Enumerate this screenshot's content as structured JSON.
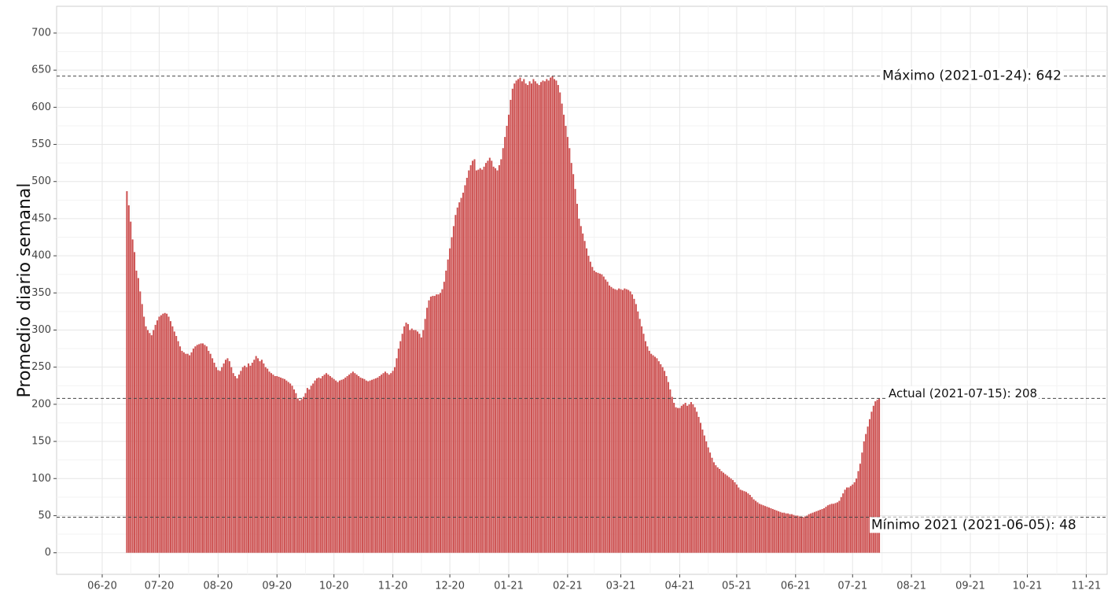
{
  "chart_data": {
    "type": "bar",
    "y_label": "Promedio diario semanal",
    "color": "#cd5252",
    "grid": true,
    "ylim": [
      -29,
      736
    ],
    "yticks": [
      0,
      50,
      100,
      150,
      200,
      250,
      300,
      350,
      400,
      450,
      500,
      550,
      600,
      650,
      700
    ],
    "xlim": [
      "2020-05-08",
      "2021-11-12"
    ],
    "xticks": [
      {
        "value": "2020-06-01",
        "label": "06-20"
      },
      {
        "value": "2020-07-01",
        "label": "07-20"
      },
      {
        "value": "2020-08-01",
        "label": "08-20"
      },
      {
        "value": "2020-09-01",
        "label": "09-20"
      },
      {
        "value": "2020-10-01",
        "label": "10-20"
      },
      {
        "value": "2020-11-01",
        "label": "11-20"
      },
      {
        "value": "2020-12-01",
        "label": "12-20"
      },
      {
        "value": "2021-01-01",
        "label": "01-21"
      },
      {
        "value": "2021-02-01",
        "label": "02-21"
      },
      {
        "value": "2021-03-01",
        "label": "03-21"
      },
      {
        "value": "2021-04-01",
        "label": "04-21"
      },
      {
        "value": "2021-05-01",
        "label": "05-21"
      },
      {
        "value": "2021-06-01",
        "label": "06-21"
      },
      {
        "value": "2021-07-01",
        "label": "07-21"
      },
      {
        "value": "2021-08-01",
        "label": "08-21"
      },
      {
        "value": "2021-09-01",
        "label": "09-21"
      },
      {
        "value": "2021-10-01",
        "label": "10-21"
      },
      {
        "value": "2021-11-01",
        "label": "11-21"
      }
    ],
    "annotations": [
      {
        "text": "Máximo (2021-01-24): 642",
        "value": 642
      },
      {
        "text": "Actual (2021-07-15): 208",
        "value": 208
      },
      {
        "text": "Mínimo 2021 (2021-06-05): 48",
        "value": 48
      }
    ],
    "x": [
      "2020-06-14",
      "2020-06-15",
      "2020-06-16",
      "2020-06-17",
      "2020-06-18",
      "2020-06-19",
      "2020-06-20",
      "2020-06-21",
      "2020-06-22",
      "2020-06-23",
      "2020-06-24",
      "2020-06-25",
      "2020-06-26",
      "2020-06-27",
      "2020-06-28",
      "2020-06-29",
      "2020-06-30",
      "2020-07-01",
      "2020-07-02",
      "2020-07-03",
      "2020-07-04",
      "2020-07-05",
      "2020-07-06",
      "2020-07-07",
      "2020-07-08",
      "2020-07-09",
      "2020-07-10",
      "2020-07-11",
      "2020-07-12",
      "2020-07-13",
      "2020-07-14",
      "2020-07-15",
      "2020-07-16",
      "2020-07-17",
      "2020-07-18",
      "2020-07-19",
      "2020-07-20",
      "2020-07-21",
      "2020-07-22",
      "2020-07-23",
      "2020-07-24",
      "2020-07-25",
      "2020-07-26",
      "2020-07-27",
      "2020-07-28",
      "2020-07-29",
      "2020-07-30",
      "2020-07-31",
      "2020-08-01",
      "2020-08-02",
      "2020-08-03",
      "2020-08-04",
      "2020-08-05",
      "2020-08-06",
      "2020-08-07",
      "2020-08-08",
      "2020-08-09",
      "2020-08-10",
      "2020-08-11",
      "2020-08-12",
      "2020-08-13",
      "2020-08-14",
      "2020-08-15",
      "2020-08-16",
      "2020-08-17",
      "2020-08-18",
      "2020-08-19",
      "2020-08-20",
      "2020-08-21",
      "2020-08-22",
      "2020-08-23",
      "2020-08-24",
      "2020-08-25",
      "2020-08-26",
      "2020-08-27",
      "2020-08-28",
      "2020-08-29",
      "2020-08-30",
      "2020-08-31",
      "2020-09-01",
      "2020-09-02",
      "2020-09-03",
      "2020-09-04",
      "2020-09-05",
      "2020-09-06",
      "2020-09-07",
      "2020-09-08",
      "2020-09-09",
      "2020-09-10",
      "2020-09-11",
      "2020-09-12",
      "2020-09-13",
      "2020-09-14",
      "2020-09-15",
      "2020-09-16",
      "2020-09-17",
      "2020-09-18",
      "2020-09-19",
      "2020-09-20",
      "2020-09-21",
      "2020-09-22",
      "2020-09-23",
      "2020-09-24",
      "2020-09-25",
      "2020-09-26",
      "2020-09-27",
      "2020-09-28",
      "2020-09-29",
      "2020-09-30",
      "2020-10-01",
      "2020-10-02",
      "2020-10-03",
      "2020-10-04",
      "2020-10-05",
      "2020-10-06",
      "2020-10-07",
      "2020-10-08",
      "2020-10-09",
      "2020-10-10",
      "2020-10-11",
      "2020-10-12",
      "2020-10-13",
      "2020-10-14",
      "2020-10-15",
      "2020-10-16",
      "2020-10-17",
      "2020-10-18",
      "2020-10-19",
      "2020-10-20",
      "2020-10-21",
      "2020-10-22",
      "2020-10-23",
      "2020-10-24",
      "2020-10-25",
      "2020-10-26",
      "2020-10-27",
      "2020-10-28",
      "2020-10-29",
      "2020-10-30",
      "2020-10-31",
      "2020-11-01",
      "2020-11-02",
      "2020-11-03",
      "2020-11-04",
      "2020-11-05",
      "2020-11-06",
      "2020-11-07",
      "2020-11-08",
      "2020-11-09",
      "2020-11-10",
      "2020-11-11",
      "2020-11-12",
      "2020-11-13",
      "2020-11-14",
      "2020-11-15",
      "2020-11-16",
      "2020-11-17",
      "2020-11-18",
      "2020-11-19",
      "2020-11-20",
      "2020-11-21",
      "2020-11-22",
      "2020-11-23",
      "2020-11-24",
      "2020-11-25",
      "2020-11-26",
      "2020-11-27",
      "2020-11-28",
      "2020-11-29",
      "2020-11-30",
      "2020-12-01",
      "2020-12-02",
      "2020-12-03",
      "2020-12-04",
      "2020-12-05",
      "2020-12-06",
      "2020-12-07",
      "2020-12-08",
      "2020-12-09",
      "2020-12-10",
      "2020-12-11",
      "2020-12-12",
      "2020-12-13",
      "2020-12-14",
      "2020-12-15",
      "2020-12-16",
      "2020-12-17",
      "2020-12-18",
      "2020-12-19",
      "2020-12-20",
      "2020-12-21",
      "2020-12-22",
      "2020-12-23",
      "2020-12-24",
      "2020-12-25",
      "2020-12-26",
      "2020-12-27",
      "2020-12-28",
      "2020-12-29",
      "2020-12-30",
      "2020-12-31",
      "2021-01-01",
      "2021-01-02",
      "2021-01-03",
      "2021-01-04",
      "2021-01-05",
      "2021-01-06",
      "2021-01-07",
      "2021-01-08",
      "2021-01-09",
      "2021-01-10",
      "2021-01-11",
      "2021-01-12",
      "2021-01-13",
      "2021-01-14",
      "2021-01-15",
      "2021-01-16",
      "2021-01-17",
      "2021-01-18",
      "2021-01-19",
      "2021-01-20",
      "2021-01-21",
      "2021-01-22",
      "2021-01-23",
      "2021-01-24",
      "2021-01-25",
      "2021-01-26",
      "2021-01-27",
      "2021-01-28",
      "2021-01-29",
      "2021-01-30",
      "2021-01-31",
      "2021-02-01",
      "2021-02-02",
      "2021-02-03",
      "2021-02-04",
      "2021-02-05",
      "2021-02-06",
      "2021-02-07",
      "2021-02-08",
      "2021-02-09",
      "2021-02-10",
      "2021-02-11",
      "2021-02-12",
      "2021-02-13",
      "2021-02-14",
      "2021-02-15",
      "2021-02-16",
      "2021-02-17",
      "2021-02-18",
      "2021-02-19",
      "2021-02-20",
      "2021-02-21",
      "2021-02-22",
      "2021-02-23",
      "2021-02-24",
      "2021-02-25",
      "2021-02-26",
      "2021-02-27",
      "2021-02-28",
      "2021-03-01",
      "2021-03-02",
      "2021-03-03",
      "2021-03-04",
      "2021-03-05",
      "2021-03-06",
      "2021-03-07",
      "2021-03-08",
      "2021-03-09",
      "2021-03-10",
      "2021-03-11",
      "2021-03-12",
      "2021-03-13",
      "2021-03-14",
      "2021-03-15",
      "2021-03-16",
      "2021-03-17",
      "2021-03-18",
      "2021-03-19",
      "2021-03-20",
      "2021-03-21",
      "2021-03-22",
      "2021-03-23",
      "2021-03-24",
      "2021-03-25",
      "2021-03-26",
      "2021-03-27",
      "2021-03-28",
      "2021-03-29",
      "2021-03-30",
      "2021-03-31",
      "2021-04-01",
      "2021-04-02",
      "2021-04-03",
      "2021-04-04",
      "2021-04-05",
      "2021-04-06",
      "2021-04-07",
      "2021-04-08",
      "2021-04-09",
      "2021-04-10",
      "2021-04-11",
      "2021-04-12",
      "2021-04-13",
      "2021-04-14",
      "2021-04-15",
      "2021-04-16",
      "2021-04-17",
      "2021-04-18",
      "2021-04-19",
      "2021-04-20",
      "2021-04-21",
      "2021-04-22",
      "2021-04-23",
      "2021-04-24",
      "2021-04-25",
      "2021-04-26",
      "2021-04-27",
      "2021-04-28",
      "2021-04-29",
      "2021-04-30",
      "2021-05-01",
      "2021-05-02",
      "2021-05-03",
      "2021-05-04",
      "2021-05-05",
      "2021-05-06",
      "2021-05-07",
      "2021-05-08",
      "2021-05-09",
      "2021-05-10",
      "2021-05-11",
      "2021-05-12",
      "2021-05-13",
      "2021-05-14",
      "2021-05-15",
      "2021-05-16",
      "2021-05-17",
      "2021-05-18",
      "2021-05-19",
      "2021-05-20",
      "2021-05-21",
      "2021-05-22",
      "2021-05-23",
      "2021-05-24",
      "2021-05-25",
      "2021-05-26",
      "2021-05-27",
      "2021-05-28",
      "2021-05-29",
      "2021-05-30",
      "2021-05-31",
      "2021-06-01",
      "2021-06-02",
      "2021-06-03",
      "2021-06-04",
      "2021-06-05",
      "2021-06-06",
      "2021-06-07",
      "2021-06-08",
      "2021-06-09",
      "2021-06-10",
      "2021-06-11",
      "2021-06-12",
      "2021-06-13",
      "2021-06-14",
      "2021-06-15",
      "2021-06-16",
      "2021-06-17",
      "2021-06-18",
      "2021-06-19",
      "2021-06-20",
      "2021-06-21",
      "2021-06-22",
      "2021-06-23",
      "2021-06-24",
      "2021-06-25",
      "2021-06-26",
      "2021-06-27",
      "2021-06-28",
      "2021-06-29",
      "2021-06-30",
      "2021-07-01",
      "2021-07-02",
      "2021-07-03",
      "2021-07-04",
      "2021-07-05",
      "2021-07-06",
      "2021-07-07",
      "2021-07-08",
      "2021-07-09",
      "2021-07-10",
      "2021-07-11",
      "2021-07-12",
      "2021-07-13",
      "2021-07-14",
      "2021-07-15"
    ],
    "values": [
      487,
      468,
      446,
      422,
      405,
      380,
      370,
      352,
      335,
      318,
      305,
      300,
      296,
      293,
      300,
      307,
      313,
      318,
      320,
      322,
      323,
      322,
      318,
      312,
      305,
      298,
      292,
      285,
      278,
      272,
      270,
      268,
      268,
      266,
      270,
      275,
      278,
      280,
      281,
      282,
      282,
      280,
      278,
      272,
      268,
      262,
      256,
      250,
      246,
      245,
      250,
      255,
      260,
      262,
      258,
      250,
      242,
      238,
      235,
      240,
      245,
      250,
      252,
      250,
      255,
      252,
      256,
      260,
      265,
      262,
      258,
      260,
      255,
      250,
      248,
      244,
      242,
      240,
      238,
      238,
      237,
      236,
      235,
      234,
      232,
      230,
      228,
      225,
      220,
      215,
      208,
      205,
      207,
      210,
      215,
      222,
      220,
      225,
      228,
      232,
      235,
      236,
      235,
      238,
      240,
      242,
      240,
      238,
      236,
      234,
      232,
      230,
      232,
      233,
      234,
      236,
      238,
      240,
      242,
      244,
      242,
      240,
      238,
      236,
      235,
      234,
      232,
      231,
      232,
      233,
      234,
      235,
      236,
      238,
      240,
      242,
      244,
      242,
      240,
      242,
      245,
      250,
      262,
      275,
      285,
      295,
      305,
      310,
      308,
      300,
      302,
      300,
      300,
      298,
      295,
      290,
      300,
      315,
      330,
      340,
      345,
      346,
      346,
      348,
      348,
      350,
      355,
      365,
      380,
      395,
      410,
      425,
      440,
      455,
      465,
      472,
      478,
      485,
      495,
      505,
      515,
      522,
      528,
      530,
      515,
      516,
      518,
      516,
      520,
      525,
      528,
      532,
      528,
      520,
      518,
      515,
      522,
      530,
      545,
      560,
      575,
      590,
      610,
      625,
      632,
      636,
      638,
      640,
      635,
      638,
      632,
      630,
      635,
      632,
      638,
      635,
      632,
      630,
      634,
      636,
      635,
      638,
      636,
      640,
      642,
      638,
      636,
      630,
      620,
      605,
      590,
      575,
      560,
      545,
      525,
      510,
      490,
      470,
      450,
      440,
      430,
      420,
      410,
      400,
      392,
      385,
      380,
      378,
      377,
      376,
      375,
      372,
      368,
      365,
      360,
      358,
      356,
      355,
      354,
      356,
      355,
      354,
      356,
      355,
      354,
      352,
      348,
      342,
      335,
      325,
      315,
      305,
      295,
      285,
      278,
      272,
      268,
      266,
      264,
      262,
      258,
      254,
      250,
      245,
      238,
      230,
      220,
      210,
      202,
      196,
      195,
      195,
      198,
      200,
      202,
      198,
      200,
      203,
      200,
      196,
      190,
      183,
      175,
      166,
      158,
      150,
      142,
      135,
      128,
      122,
      118,
      115,
      113,
      110,
      108,
      106,
      104,
      102,
      100,
      98,
      95,
      92,
      88,
      85,
      84,
      83,
      82,
      80,
      78,
      75,
      72,
      70,
      68,
      66,
      65,
      64,
      63,
      62,
      61,
      60,
      59,
      58,
      57,
      56,
      55,
      54,
      54,
      53,
      53,
      52,
      52,
      51,
      50,
      50,
      49,
      49,
      48,
      49,
      50,
      52,
      53,
      54,
      55,
      56,
      57,
      58,
      59,
      60,
      62,
      64,
      65,
      66,
      66,
      67,
      68,
      70,
      75,
      80,
      85,
      88,
      88,
      90,
      92,
      95,
      100,
      110,
      120,
      135,
      150,
      160,
      170,
      180,
      190,
      198,
      204,
      206,
      208
    ]
  }
}
